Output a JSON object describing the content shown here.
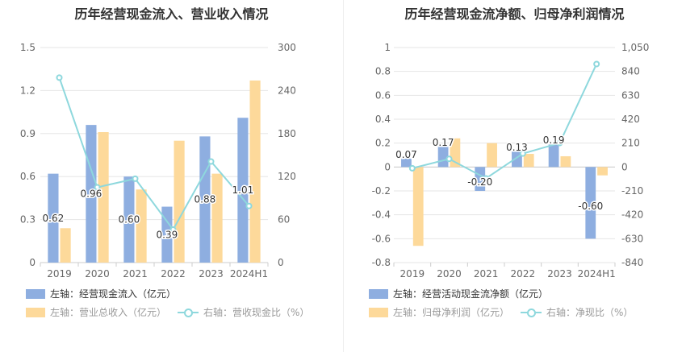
{
  "colors": {
    "blue": "#8eaee0",
    "orange": "#fdd99a",
    "line": "#8ed8dd"
  },
  "chart_data": [
    {
      "type": "bar",
      "title": "历年经营现金流入、营业收入情况",
      "categories": [
        "2019",
        "2020",
        "2021",
        "2022",
        "2023",
        "2024H1"
      ],
      "left_axis": {
        "min": 0,
        "max": 1.5,
        "ticks": [
          "0",
          "0.3",
          "0.6",
          "0.9",
          "1.2",
          "1.5"
        ]
      },
      "right_axis": {
        "min": 0,
        "max": 300,
        "ticks": [
          "0",
          "60",
          "120",
          "180",
          "240",
          "300"
        ]
      },
      "series": [
        {
          "name": "左轴：经营现金流入（亿元）",
          "axis": "left",
          "kind": "bar",
          "values": [
            0.62,
            0.96,
            0.6,
            0.39,
            0.88,
            1.01
          ],
          "labels": [
            "0.62",
            "0.96",
            "0.60",
            "0.39",
            "0.88",
            "1.01"
          ]
        },
        {
          "name": "左轴：营业总收入（亿元）",
          "axis": "left",
          "kind": "bar",
          "values": [
            0.24,
            0.91,
            0.51,
            0.85,
            0.62,
            1.27
          ]
        },
        {
          "name": "右轴：营收现金比（%）",
          "axis": "right",
          "kind": "line",
          "values": [
            258,
            105,
            117,
            46,
            141,
            79
          ]
        }
      ],
      "legend": [
        {
          "label": "左轴：经营现金流入（亿元）",
          "type": "bar",
          "series": 0
        },
        {
          "label": "左轴：营业总收入（亿元）",
          "type": "bar",
          "series": 1
        },
        {
          "label": "右轴：营收现金比（%）",
          "type": "line",
          "series": 2
        }
      ]
    },
    {
      "type": "bar",
      "title": "历年经营现金流净额、归母净利润情况",
      "categories": [
        "2019",
        "2020",
        "2021",
        "2022",
        "2023",
        "2024H1"
      ],
      "left_axis": {
        "min": -0.8,
        "max": 1,
        "ticks": [
          "-0.8",
          "-0.6",
          "-0.4",
          "-0.2",
          "0",
          "0.2",
          "0.4",
          "0.6",
          "0.8",
          "1"
        ]
      },
      "right_axis": {
        "min": -840,
        "max": 1050,
        "ticks": [
          "-840",
          "-630",
          "-420",
          "-210",
          "0",
          "210",
          "420",
          "630",
          "840",
          "1,050"
        ]
      },
      "series": [
        {
          "name": "左轴：经营活动现金流净额（亿元）",
          "axis": "left",
          "kind": "bar",
          "values": [
            0.07,
            0.17,
            -0.2,
            0.13,
            0.19,
            -0.6
          ],
          "labels": [
            "0.07",
            "0.17",
            "-0.20",
            "0.13",
            "0.19",
            "-0.60"
          ]
        },
        {
          "name": "左轴：归母净利润（亿元）",
          "axis": "left",
          "kind": "bar",
          "values": [
            -0.66,
            0.24,
            0.2,
            0.11,
            0.09,
            -0.07
          ]
        },
        {
          "name": "右轴：净现比（%）",
          "axis": "right",
          "kind": "line",
          "values": [
            -11,
            71,
            -100,
            118,
            211,
            905
          ]
        }
      ],
      "legend": [
        {
          "label": "左轴：经营活动现金流净额（亿元）",
          "type": "bar",
          "series": 0
        },
        {
          "label": "左轴：归母净利润（亿元）",
          "type": "bar",
          "series": 1
        },
        {
          "label": "右轴：净现比（%）",
          "type": "line",
          "series": 2
        }
      ]
    }
  ]
}
